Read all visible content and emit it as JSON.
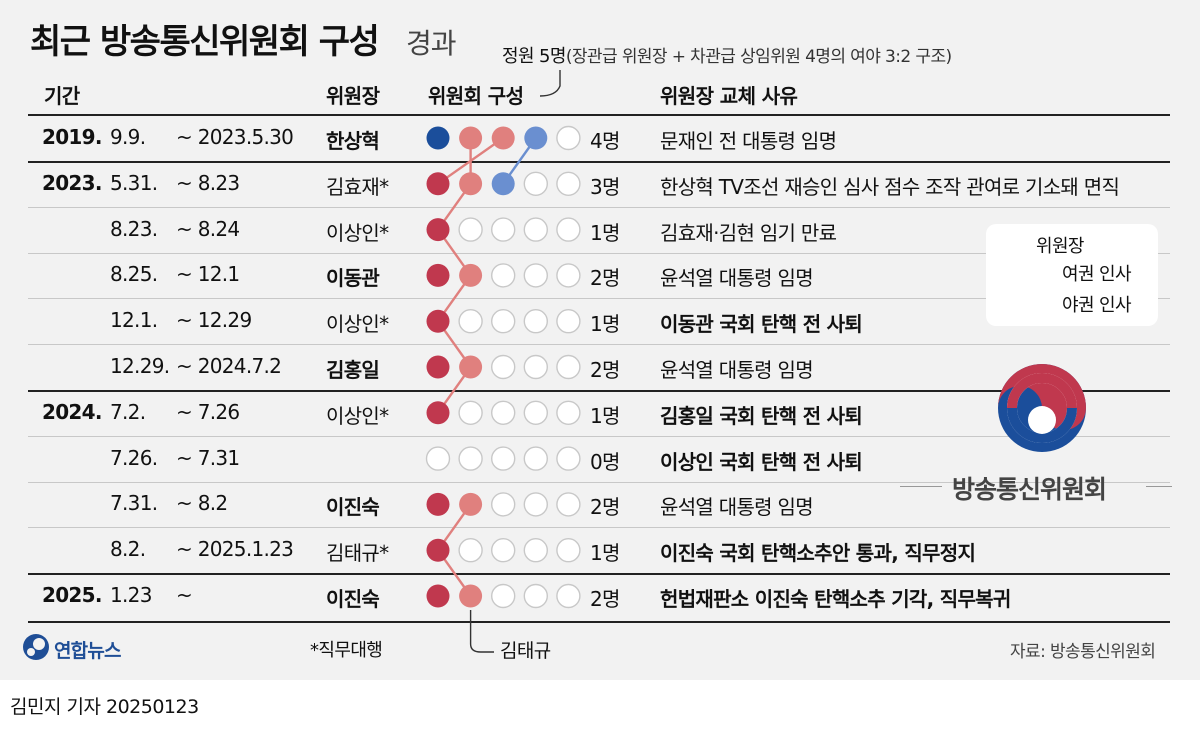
{
  "title": "최근 방송통신위원회 구성",
  "title_suffix": "경과",
  "capacity_label": "정원 5명",
  "capacity_note": "(장관급 위원장 + 차관급 상임위원 4명의 여야 3:2 구조)",
  "headers": {
    "period": "기간",
    "chair": "위원장",
    "composition": "위원회 구성",
    "reason": "위원장 교체 사유"
  },
  "colors": {
    "ruling_chair": "#c0384e",
    "ruling_member": "#e0807e",
    "opposition_chair": "#1b4e9b",
    "opposition_member": "#6a8fd0",
    "empty": "#c8c8c8"
  },
  "rows": [
    {
      "year": "2019.",
      "start": "9.9.",
      "end": "~ 2023.5.30",
      "chair": "한상혁",
      "chair_bold": true,
      "count": "4명",
      "reason": "문재인 전 대통령 임명",
      "reason_bold": false,
      "circles": [
        "opposition_chair",
        "ruling_member",
        "ruling_member",
        "opposition_member",
        "empty"
      ]
    },
    {
      "year": "2023.",
      "start": "5.31.",
      "end": "~ 8.23",
      "chair": "김효재*",
      "chair_bold": false,
      "count": "3명",
      "reason": "한상혁 TV조선 재승인 심사 점수 조작 관여로 기소돼 면직",
      "reason_bold": false,
      "circles": [
        "ruling_chair",
        "ruling_member",
        "opposition_member",
        "empty",
        "empty"
      ]
    },
    {
      "year": "",
      "start": "8.23.",
      "end": "~ 8.24",
      "chair": "이상인*",
      "chair_bold": false,
      "count": "1명",
      "reason": "김효재·김현 임기 만료",
      "reason_bold": false,
      "circles": [
        "ruling_chair",
        "empty",
        "empty",
        "empty",
        "empty"
      ]
    },
    {
      "year": "",
      "start": "8.25.",
      "end": "~ 12.1",
      "chair": "이동관",
      "chair_bold": true,
      "count": "2명",
      "reason": "윤석열 대통령 임명",
      "reason_bold": false,
      "circles": [
        "ruling_chair",
        "ruling_member",
        "empty",
        "empty",
        "empty"
      ]
    },
    {
      "year": "",
      "start": "12.1.",
      "end": "~ 12.29",
      "chair": "이상인*",
      "chair_bold": false,
      "count": "1명",
      "reason": "이동관 국회 탄핵 전 사퇴",
      "reason_bold": true,
      "circles": [
        "ruling_chair",
        "empty",
        "empty",
        "empty",
        "empty"
      ]
    },
    {
      "year": "",
      "start": "12.29.",
      "end": "~ 2024.7.2",
      "chair": "김홍일",
      "chair_bold": true,
      "count": "2명",
      "reason": "윤석열 대통령 임명",
      "reason_bold": false,
      "circles": [
        "ruling_chair",
        "ruling_member",
        "empty",
        "empty",
        "empty"
      ]
    },
    {
      "year": "2024.",
      "start": "7.2.",
      "end": "~ 7.26",
      "chair": "이상인*",
      "chair_bold": false,
      "count": "1명",
      "reason": "김홍일 국회 탄핵 전 사퇴",
      "reason_bold": true,
      "circles": [
        "ruling_chair",
        "empty",
        "empty",
        "empty",
        "empty"
      ]
    },
    {
      "year": "",
      "start": "7.26.",
      "end": "~ 7.31",
      "chair": "",
      "chair_bold": false,
      "count": "0명",
      "reason": "이상인 국회 탄핵 전 사퇴",
      "reason_bold": true,
      "circles": [
        "empty",
        "empty",
        "empty",
        "empty",
        "empty"
      ]
    },
    {
      "year": "",
      "start": "7.31.",
      "end": "~ 8.2",
      "chair": "이진숙",
      "chair_bold": true,
      "count": "2명",
      "reason": "윤석열 대통령 임명",
      "reason_bold": false,
      "circles": [
        "ruling_chair",
        "ruling_member",
        "empty",
        "empty",
        "empty"
      ]
    },
    {
      "year": "",
      "start": "8.2.",
      "end": "~ 2025.1.23",
      "chair": "김태규*",
      "chair_bold": false,
      "count": "1명",
      "reason": "이진숙 국회 탄핵소추안 통과, 직무정지",
      "reason_bold": true,
      "circles": [
        "ruling_chair",
        "empty",
        "empty",
        "empty",
        "empty"
      ]
    },
    {
      "year": "2025.",
      "start": "1.23",
      "end": "~",
      "chair": "이진숙",
      "chair_bold": true,
      "count": "2명",
      "reason": "헌법재판소 이진숙 탄핵소추 기각, 직무복귀",
      "reason_bold": true,
      "circles": [
        "ruling_chair",
        "ruling_member",
        "empty",
        "empty",
        "empty"
      ]
    }
  ],
  "legend": {
    "chair_label": "위원장",
    "ruling_label": "여권 인사",
    "opposition_label": "야권 인사"
  },
  "kcc_name": "방송통신위원회",
  "yonhap_name": "연합뉴스",
  "acting_note": "*직무대행",
  "callout_name": "김태규",
  "source": "자료: 방송통신위원회",
  "byline": "김민지 기자  20250123"
}
